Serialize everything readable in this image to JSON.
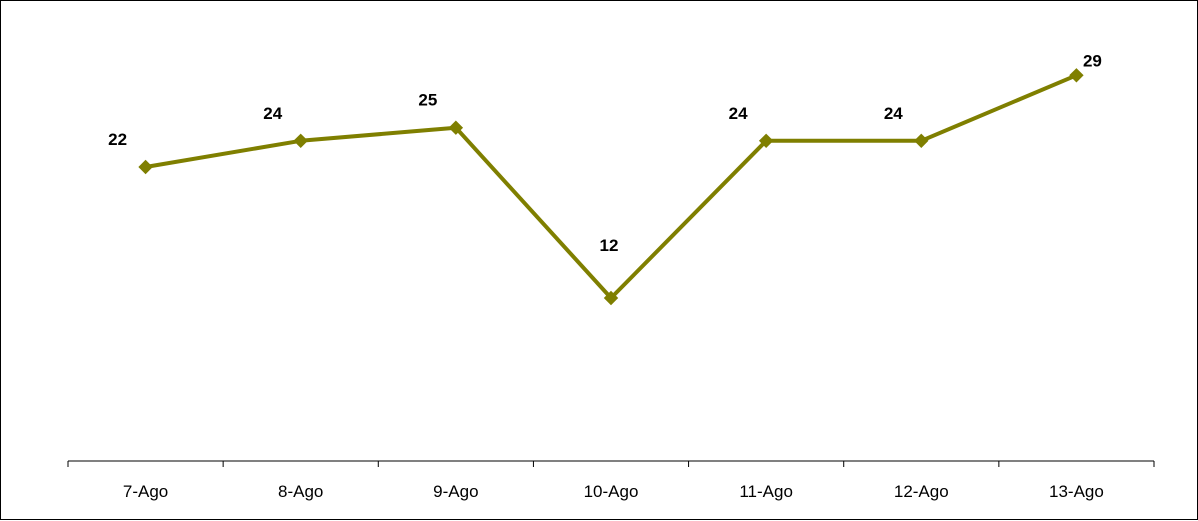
{
  "chart_data": {
    "type": "line",
    "title": "",
    "xlabel": "",
    "ylabel": "",
    "categories": [
      "7-Ago",
      "8-Ago",
      "9-Ago",
      "10-Ago",
      "11-Ago",
      "12-Ago",
      "13-Ago"
    ],
    "series": [
      {
        "values": [
          22,
          24,
          25,
          12,
          24,
          24,
          29
        ],
        "color": "#7f7f00",
        "marker": "diamond"
      }
    ],
    "data_labels": true,
    "y_axis_visible": false,
    "grid": false,
    "legend": "none"
  }
}
